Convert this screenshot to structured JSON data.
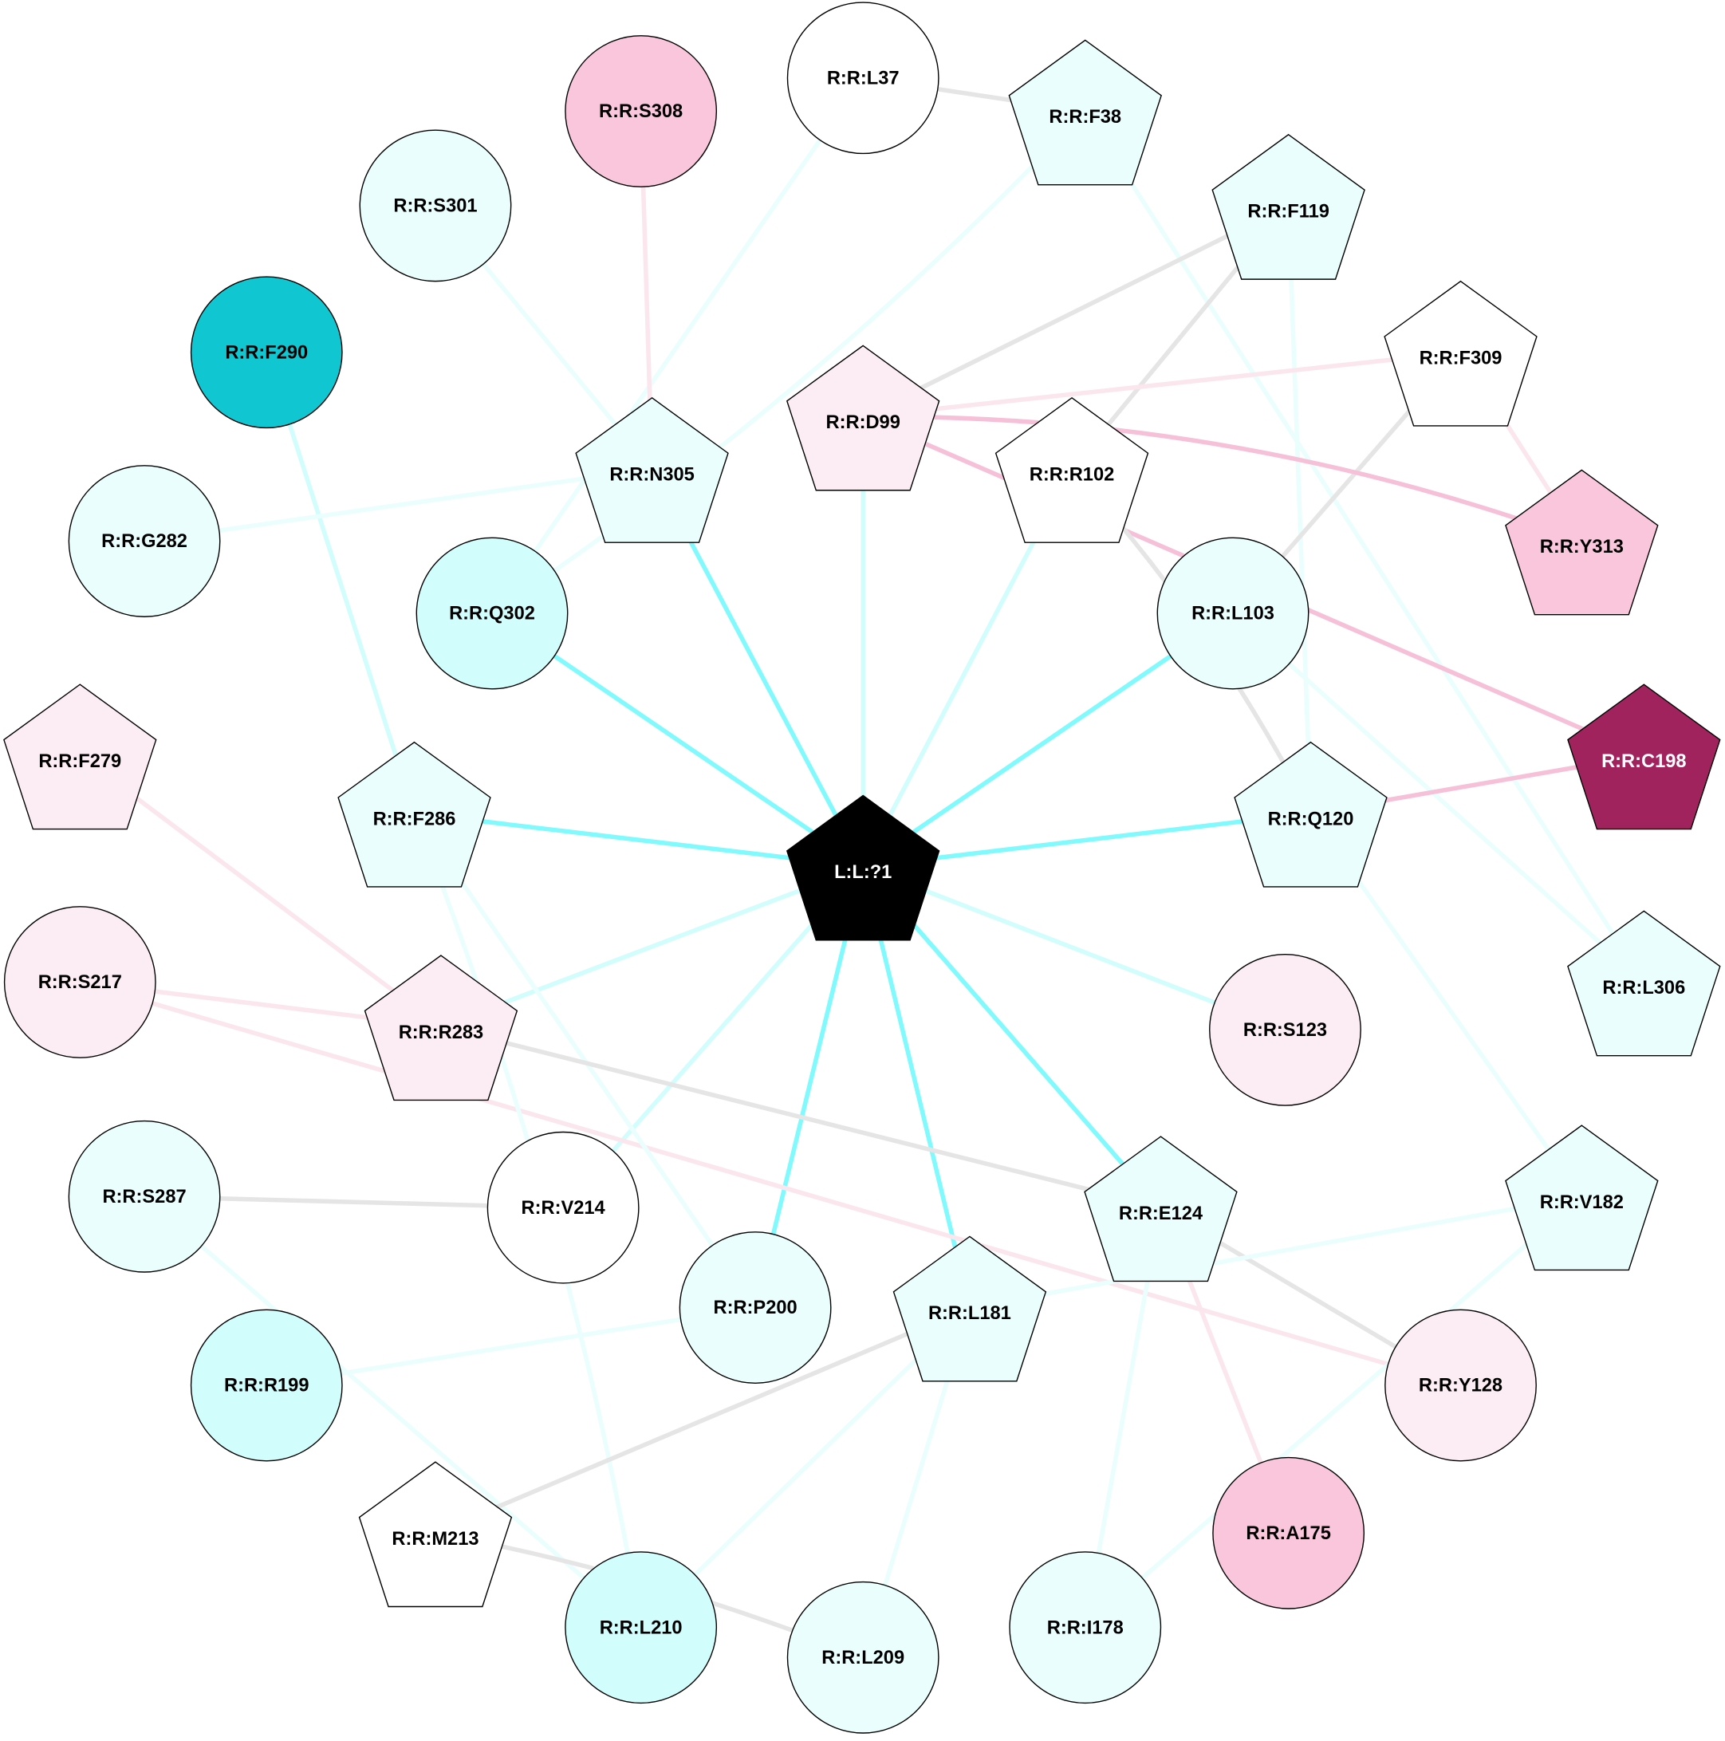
{
  "colors": {
    "white": "#ffffff",
    "light_cyan": "#eafefe",
    "cyan": "#d2fdfd",
    "teal": "#10c6d0",
    "light_pink": "#fcecf3",
    "pink": "#f9c6dc",
    "magenta": "#a0235e",
    "black": "#000000",
    "edge_gray": "#e5e5e5",
    "edge_cyan_strong": "#80fafd",
    "edge_cyan": "#d2fdfd",
    "edge_cyan_light": "#eafefe",
    "edge_pink": "#f6c0d8",
    "edge_pink_light": "#fbe6ee"
  },
  "nodes": [
    {
      "id": "L37",
      "label": "R:R:L37",
      "shape": "circle",
      "fill": "white"
    },
    {
      "id": "F38",
      "label": "R:R:F38",
      "shape": "pentagon",
      "fill": "light_cyan"
    },
    {
      "id": "S308",
      "label": "R:R:S308",
      "shape": "circle",
      "fill": "pink"
    },
    {
      "id": "S301",
      "label": "R:R:S301",
      "shape": "circle",
      "fill": "light_cyan"
    },
    {
      "id": "F119",
      "label": "R:R:F119",
      "shape": "pentagon",
      "fill": "light_cyan"
    },
    {
      "id": "F290",
      "label": "R:R:F290",
      "shape": "circle",
      "fill": "teal"
    },
    {
      "id": "F309",
      "label": "R:R:F309",
      "shape": "pentagon",
      "fill": "white"
    },
    {
      "id": "D99",
      "label": "R:R:D99",
      "shape": "pentagon",
      "fill": "light_pink"
    },
    {
      "id": "N305",
      "label": "R:R:N305",
      "shape": "pentagon",
      "fill": "light_cyan"
    },
    {
      "id": "R102",
      "label": "R:R:R102",
      "shape": "pentagon",
      "fill": "white"
    },
    {
      "id": "G282",
      "label": "R:R:G282",
      "shape": "circle",
      "fill": "light_cyan"
    },
    {
      "id": "Y313",
      "label": "R:R:Y313",
      "shape": "pentagon",
      "fill": "pink"
    },
    {
      "id": "Q302",
      "label": "R:R:Q302",
      "shape": "circle",
      "fill": "cyan"
    },
    {
      "id": "L103",
      "label": "R:R:L103",
      "shape": "circle",
      "fill": "light_cyan"
    },
    {
      "id": "F279",
      "label": "R:R:F279",
      "shape": "pentagon",
      "fill": "light_pink"
    },
    {
      "id": "C198",
      "label": "R:R:C198",
      "shape": "pentagon",
      "fill": "magenta",
      "text": "white"
    },
    {
      "id": "F286",
      "label": "R:R:F286",
      "shape": "pentagon",
      "fill": "light_cyan"
    },
    {
      "id": "Q120",
      "label": "R:R:Q120",
      "shape": "pentagon",
      "fill": "light_cyan"
    },
    {
      "id": "LIG",
      "label": "L:L:?1",
      "shape": "pentagon",
      "fill": "black",
      "text": "white"
    },
    {
      "id": "S217",
      "label": "R:R:S217",
      "shape": "circle",
      "fill": "light_pink"
    },
    {
      "id": "L306",
      "label": "R:R:L306",
      "shape": "pentagon",
      "fill": "light_cyan"
    },
    {
      "id": "R283",
      "label": "R:R:R283",
      "shape": "pentagon",
      "fill": "light_pink"
    },
    {
      "id": "S123",
      "label": "R:R:S123",
      "shape": "circle",
      "fill": "light_pink"
    },
    {
      "id": "S287",
      "label": "R:R:S287",
      "shape": "circle",
      "fill": "light_cyan"
    },
    {
      "id": "V214",
      "label": "R:R:V214",
      "shape": "circle",
      "fill": "white"
    },
    {
      "id": "E124",
      "label": "R:R:E124",
      "shape": "pentagon",
      "fill": "light_cyan"
    },
    {
      "id": "V182",
      "label": "R:R:V182",
      "shape": "pentagon",
      "fill": "light_cyan"
    },
    {
      "id": "P200",
      "label": "R:R:P200",
      "shape": "circle",
      "fill": "light_cyan"
    },
    {
      "id": "L181",
      "label": "R:R:L181",
      "shape": "pentagon",
      "fill": "light_cyan"
    },
    {
      "id": "R199",
      "label": "R:R:R199",
      "shape": "circle",
      "fill": "cyan"
    },
    {
      "id": "Y128",
      "label": "R:R:Y128",
      "shape": "circle",
      "fill": "light_pink"
    },
    {
      "id": "M213",
      "label": "R:R:M213",
      "shape": "pentagon",
      "fill": "white"
    },
    {
      "id": "A175",
      "label": "R:R:A175",
      "shape": "circle",
      "fill": "pink"
    },
    {
      "id": "L210",
      "label": "R:R:L210",
      "shape": "circle",
      "fill": "cyan"
    },
    {
      "id": "L209",
      "label": "R:R:L209",
      "shape": "circle",
      "fill": "light_cyan"
    },
    {
      "id": "I178",
      "label": "R:R:I178",
      "shape": "circle",
      "fill": "light_cyan"
    }
  ],
  "edges": [
    [
      "LIG",
      "N305",
      "edge_cyan_strong"
    ],
    [
      "LIG",
      "Q302",
      "edge_cyan_strong"
    ],
    [
      "LIG",
      "F286",
      "edge_cyan_strong"
    ],
    [
      "LIG",
      "L103",
      "edge_cyan_strong"
    ],
    [
      "LIG",
      "Q120",
      "edge_cyan_strong"
    ],
    [
      "LIG",
      "E124",
      "edge_cyan_strong"
    ],
    [
      "LIG",
      "L181",
      "edge_cyan_strong"
    ],
    [
      "LIG",
      "P200",
      "edge_cyan_strong"
    ],
    [
      "LIG",
      "D99",
      "edge_cyan"
    ],
    [
      "LIG",
      "R102",
      "edge_cyan"
    ],
    [
      "LIG",
      "R283",
      "edge_cyan"
    ],
    [
      "LIG",
      "V214",
      "edge_cyan"
    ],
    [
      "LIG",
      "S123",
      "edge_cyan"
    ],
    [
      "L37",
      "F38",
      "edge_gray"
    ],
    [
      "L37",
      "Q302",
      "edge_cyan_light"
    ],
    [
      "F38",
      "Q302",
      "edge_cyan_light"
    ],
    [
      "F38",
      "L306",
      "edge_cyan_light"
    ],
    [
      "S308",
      "N305",
      "edge_pink_light"
    ],
    [
      "S301",
      "N305",
      "edge_cyan_light"
    ],
    [
      "F119",
      "D99",
      "edge_gray"
    ],
    [
      "F119",
      "R102",
      "edge_gray"
    ],
    [
      "F119",
      "Q120",
      "edge_cyan_light"
    ],
    [
      "F309",
      "D99",
      "edge_pink_light"
    ],
    [
      "F309",
      "Y313",
      "edge_pink_light"
    ],
    [
      "F309",
      "L103",
      "edge_gray"
    ],
    [
      "D99",
      "Y313",
      "edge_pink"
    ],
    [
      "D99",
      "C198",
      "edge_pink"
    ],
    [
      "R102",
      "Q120",
      "edge_gray"
    ],
    [
      "L103",
      "L306",
      "edge_cyan_light"
    ],
    [
      "F290",
      "F286",
      "edge_cyan"
    ],
    [
      "G282",
      "N305",
      "edge_cyan_light"
    ],
    [
      "Q120",
      "C198",
      "edge_pink"
    ],
    [
      "Q120",
      "V182",
      "edge_cyan_light"
    ],
    [
      "F279",
      "R283",
      "edge_pink_light"
    ],
    [
      "S217",
      "R283",
      "edge_pink_light"
    ],
    [
      "S217",
      "Y128",
      "edge_pink_light"
    ],
    [
      "F286",
      "P200",
      "edge_cyan_light"
    ],
    [
      "F286",
      "L210",
      "edge_cyan_light"
    ],
    [
      "R283",
      "E124",
      "edge_gray"
    ],
    [
      "S287",
      "V214",
      "edge_gray"
    ],
    [
      "S287",
      "L210",
      "edge_cyan_light"
    ],
    [
      "E124",
      "Y128",
      "edge_gray"
    ],
    [
      "E124",
      "A175",
      "edge_pink_light"
    ],
    [
      "E124",
      "I178",
      "edge_cyan_light"
    ],
    [
      "V182",
      "L181",
      "edge_cyan_light"
    ],
    [
      "V182",
      "I178",
      "edge_cyan_light"
    ],
    [
      "P200",
      "R199",
      "edge_cyan_light"
    ],
    [
      "L181",
      "M213",
      "edge_gray"
    ],
    [
      "L181",
      "L210",
      "edge_cyan_light"
    ],
    [
      "L181",
      "L209",
      "edge_cyan_light"
    ],
    [
      "M213",
      "L209",
      "edge_gray"
    ]
  ]
}
